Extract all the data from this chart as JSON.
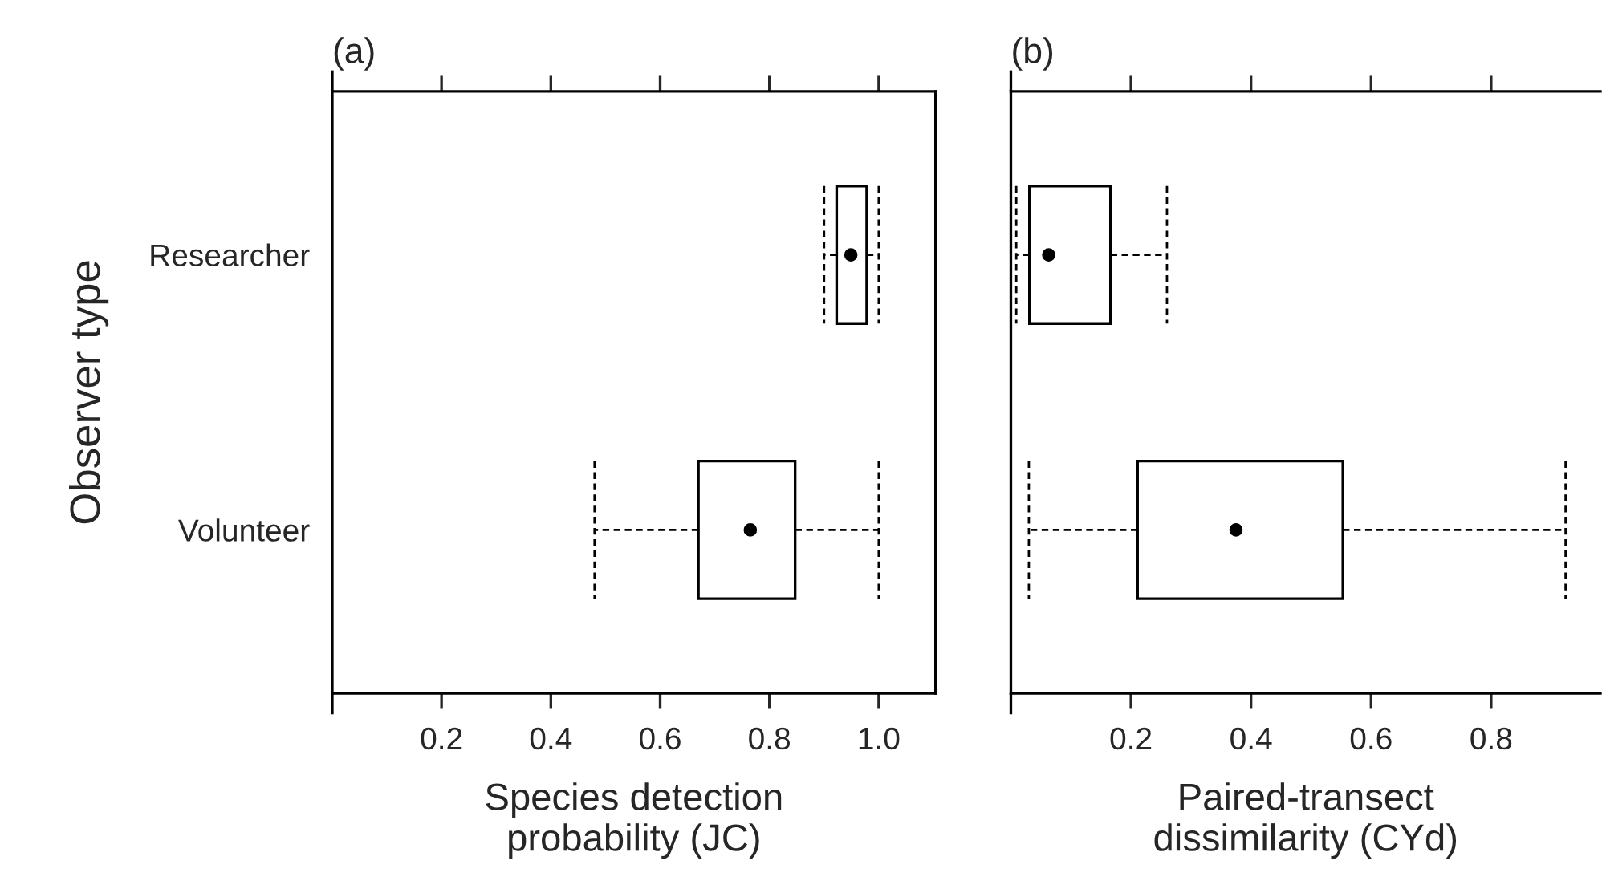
{
  "chart_data": [
    {
      "type": "box",
      "title": "(a)",
      "orientation": "horizontal",
      "categories": [
        "Researcher",
        "Volunteer"
      ],
      "xlabel": "Species detection\nprobability (JC)",
      "ylabel": "Observer type",
      "xlim": [
        0,
        1.104
      ],
      "xticks": [
        0.2,
        0.4,
        0.6,
        0.8,
        {
          "value": 1.0,
          "label": "1.0"
        }
      ],
      "boxes": [
        {
          "low": 0.9,
          "q1": 0.923,
          "median": 0.949,
          "q3": 0.978,
          "high": 1.0
        },
        {
          "low": 0.48,
          "q1": 0.67,
          "median": 0.765,
          "q3": 0.847,
          "high": 1.0
        }
      ]
    },
    {
      "type": "box",
      "title": "(b)",
      "orientation": "horizontal",
      "categories": [
        null,
        null
      ],
      "xlabel": "Paired-transect\ndissimilarity (CYd)",
      "xlim": [
        0,
        0.982
      ],
      "xticks": [
        0.2,
        0.4,
        0.6,
        0.8
      ],
      "boxes": [
        {
          "low": 0.009,
          "q1": 0.031,
          "median": 0.063,
          "q3": 0.166,
          "high": 0.26
        },
        {
          "low": 0.03,
          "q1": 0.211,
          "median": 0.375,
          "q3": 0.553,
          "high": 0.924
        }
      ]
    }
  ]
}
